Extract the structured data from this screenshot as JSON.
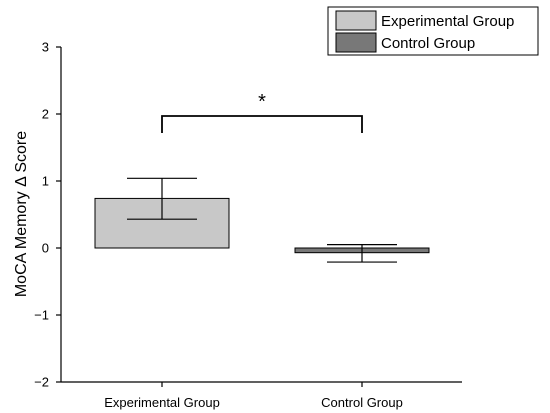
{
  "chart_data": {
    "type": "bar",
    "title": "",
    "xlabel": "",
    "ylabel": "MoCA Memory Δ Score",
    "ylim": [
      -2,
      3
    ],
    "yticks": [
      3,
      2,
      1,
      0,
      -1,
      -2
    ],
    "ytick_labels": [
      "3",
      "2",
      "1",
      "0",
      "−1",
      "−2"
    ],
    "categories": [
      "Experimental Group",
      "Control Group"
    ],
    "values": [
      0.74,
      -0.07
    ],
    "error_upper": [
      1.04,
      0.05
    ],
    "error_lower": [
      0.43,
      -0.21
    ],
    "colors": [
      "#c8c8c8",
      "#787878"
    ],
    "legend": {
      "placement": "top-right",
      "entries": [
        "Experimental Group",
        "Control Group"
      ]
    },
    "annotation": {
      "text": "*",
      "between": [
        "Experimental Group",
        "Control Group"
      ],
      "bracket_y": 1.97
    },
    "grid": false
  }
}
